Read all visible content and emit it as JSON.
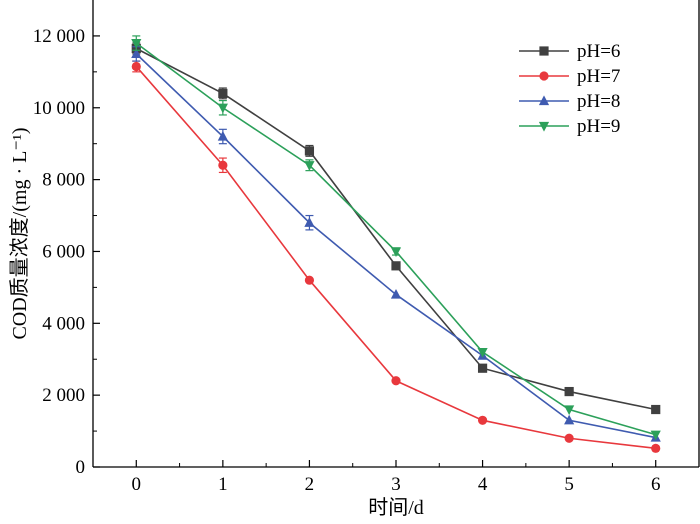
{
  "chart_data": {
    "type": "line",
    "title": "",
    "xlabel": "时间/d",
    "ylabel": "COD质量浓度/(mg · L⁻¹)",
    "x": [
      0,
      1,
      2,
      3,
      4,
      5,
      6
    ],
    "xlim": [
      -0.5,
      6.5
    ],
    "ylim": [
      0,
      13000
    ],
    "xticks": [
      0,
      1,
      2,
      3,
      4,
      5,
      6
    ],
    "xtick_labels": [
      "0",
      "1",
      "2",
      "3",
      "4",
      "5",
      "6"
    ],
    "yticks": [
      0,
      2000,
      4000,
      6000,
      8000,
      10000,
      12000
    ],
    "ytick_labels": [
      "0",
      "2 000",
      "4 000",
      "6 000",
      "8 000",
      "10 000",
      "12 000"
    ],
    "grid": false,
    "legend_position": "top-right",
    "series": [
      {
        "name": "pH=6",
        "color": "#404040",
        "marker": "square",
        "values": [
          11650,
          10400,
          8800,
          5600,
          2750,
          2100,
          1600
        ],
        "errors": [
          150,
          150,
          150,
          0,
          0,
          0,
          0
        ]
      },
      {
        "name": "pH=7",
        "color": "#e8383d",
        "marker": "circle",
        "values": [
          11150,
          8400,
          5200,
          2400,
          1300,
          800,
          520
        ],
        "errors": [
          150,
          200,
          0,
          0,
          0,
          0,
          0
        ]
      },
      {
        "name": "pH=8",
        "color": "#3f5bb0",
        "marker": "triangle-up",
        "values": [
          11500,
          9200,
          6800,
          4800,
          3100,
          1300,
          820
        ],
        "errors": [
          200,
          200,
          200,
          0,
          0,
          0,
          0
        ]
      },
      {
        "name": "pH=9",
        "color": "#2ca05a",
        "marker": "triangle-down",
        "values": [
          11800,
          10000,
          8400,
          6000,
          3200,
          1600,
          900
        ],
        "errors": [
          200,
          200,
          150,
          100,
          0,
          0,
          0
        ]
      }
    ]
  }
}
